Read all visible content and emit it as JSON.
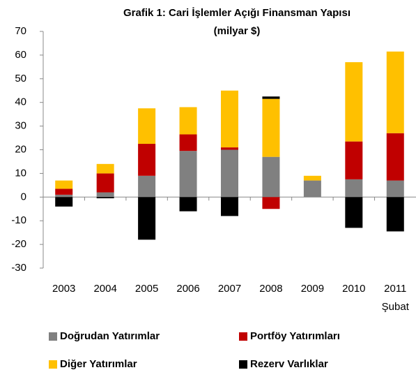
{
  "chart_data": {
    "type": "stacked_bar",
    "title": "Grafik 1: Cari İşlemler Açığı Finansman Yapısı",
    "subtitle": "(milyar $)",
    "categories": [
      "2003",
      "2004",
      "2005",
      "2006",
      "2007",
      "2008",
      "2009",
      "2010",
      "2011 Şubat"
    ],
    "series": [
      {
        "name": "Doğrudan Yatırımlar",
        "color": "#808080",
        "values": [
          1,
          2,
          9,
          19.5,
          20,
          17,
          7,
          7.5,
          7
        ]
      },
      {
        "name": "Portföy Yatırımları",
        "color": "#c00000",
        "values": [
          2.5,
          8,
          13.5,
          7,
          1,
          -5,
          0,
          16,
          20
        ]
      },
      {
        "name": "Diğer Yatırımlar",
        "color": "#ffc000",
        "values": [
          3.5,
          4,
          15,
          11.5,
          24,
          24.5,
          2,
          33.5,
          34.5
        ]
      },
      {
        "name": "Rezerv Varlıklar",
        "color": "#000000",
        "values": [
          -4,
          -0.5,
          -18,
          -6,
          -8,
          1,
          0,
          -13,
          -14.5
        ]
      }
    ],
    "ylim": [
      -30,
      70
    ],
    "yticks": [
      -30,
      -20,
      -10,
      0,
      10,
      20,
      30,
      40,
      50,
      60,
      70
    ],
    "grid": false
  }
}
